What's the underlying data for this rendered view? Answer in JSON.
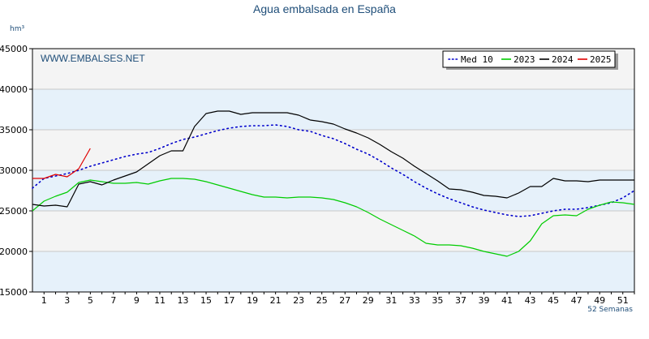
{
  "chart_data": {
    "type": "line",
    "title": "Agua embalsada en España",
    "ylabel": "hm³",
    "xlabel": "52 Semanas",
    "watermark": "WWW.EMBALSES.NET",
    "ylim": [
      15000,
      45000
    ],
    "xlim": [
      0,
      52
    ],
    "y_ticks": [
      "15000",
      "20000",
      "25000",
      "30000",
      "35000",
      "40000",
      "45000"
    ],
    "y_tick_values": [
      15000,
      20000,
      25000,
      30000,
      35000,
      40000,
      45000
    ],
    "x_ticks": [
      "1",
      "3",
      "5",
      "7",
      "9",
      "11",
      "13",
      "15",
      "17",
      "19",
      "21",
      "23",
      "25",
      "27",
      "29",
      "31",
      "33",
      "35",
      "37",
      "39",
      "41",
      "43",
      "45",
      "47",
      "49",
      "51"
    ],
    "x_tick_values": [
      1,
      3,
      5,
      7,
      9,
      11,
      13,
      15,
      17,
      19,
      21,
      23,
      25,
      27,
      29,
      31,
      33,
      35,
      37,
      39,
      41,
      43,
      45,
      47,
      49,
      51
    ],
    "grid": true,
    "band_colors": [
      "#e6f1fa",
      "#f4f4f4"
    ],
    "legend_position": "top-right",
    "series": [
      {
        "name": "Med 10",
        "color": "#0000cc",
        "style": "dotted",
        "x": [
          0,
          1,
          2,
          3,
          4,
          5,
          6,
          7,
          8,
          9,
          10,
          11,
          12,
          13,
          14,
          15,
          16,
          17,
          18,
          19,
          20,
          21,
          22,
          23,
          24,
          25,
          26,
          27,
          28,
          29,
          30,
          31,
          32,
          33,
          34,
          35,
          36,
          37,
          38,
          39,
          40,
          41,
          42,
          43,
          44,
          45,
          46,
          47,
          48,
          49,
          50,
          51,
          52
        ],
        "values": [
          27800,
          29000,
          29300,
          29600,
          30000,
          30500,
          30900,
          31300,
          31700,
          32000,
          32200,
          32700,
          33300,
          33800,
          34100,
          34500,
          34900,
          35200,
          35400,
          35500,
          35500,
          35600,
          35400,
          35000,
          34800,
          34300,
          33900,
          33300,
          32600,
          32000,
          31200,
          30300,
          29500,
          28600,
          27800,
          27100,
          26500,
          26000,
          25500,
          25100,
          24800,
          24500,
          24300,
          24400,
          24700,
          25000,
          25200,
          25200,
          25400,
          25700,
          26000,
          26600,
          27500
        ]
      },
      {
        "name": "2023",
        "color": "#00cc00",
        "style": "solid",
        "x": [
          0,
          1,
          2,
          3,
          4,
          5,
          6,
          7,
          8,
          9,
          10,
          11,
          12,
          13,
          14,
          15,
          16,
          17,
          18,
          19,
          20,
          21,
          22,
          23,
          24,
          25,
          26,
          27,
          28,
          29,
          30,
          31,
          32,
          33,
          34,
          35,
          36,
          37,
          38,
          39,
          40,
          41,
          42,
          43,
          44,
          45,
          46,
          47,
          48,
          49,
          50,
          51,
          52
        ],
        "values": [
          25000,
          26200,
          26800,
          27300,
          28500,
          28800,
          28600,
          28400,
          28400,
          28500,
          28300,
          28700,
          29000,
          29000,
          28900,
          28600,
          28200,
          27800,
          27400,
          27000,
          26700,
          26700,
          26600,
          26700,
          26700,
          26600,
          26400,
          26000,
          25500,
          24800,
          24000,
          23300,
          22600,
          21900,
          21000,
          20800,
          20800,
          20700,
          20400,
          20000,
          19700,
          19400,
          20000,
          21300,
          23400,
          24400,
          24500,
          24400,
          25200,
          25700,
          26100,
          26000,
          25800
        ]
      },
      {
        "name": "2024",
        "color": "#000000",
        "style": "solid",
        "x": [
          0,
          1,
          2,
          3,
          4,
          5,
          6,
          7,
          8,
          9,
          10,
          11,
          12,
          13,
          14,
          15,
          16,
          17,
          18,
          19,
          20,
          21,
          22,
          23,
          24,
          25,
          26,
          27,
          28,
          29,
          30,
          31,
          32,
          33,
          34,
          35,
          36,
          37,
          38,
          39,
          40,
          41,
          42,
          43,
          44,
          45,
          46,
          47,
          48,
          49,
          50,
          51,
          52
        ],
        "values": [
          25800,
          25600,
          25700,
          25500,
          28300,
          28600,
          28200,
          28800,
          29300,
          29800,
          30800,
          31800,
          32400,
          32400,
          35400,
          37000,
          37300,
          37300,
          36900,
          37100,
          37100,
          37100,
          37100,
          36800,
          36200,
          36000,
          35700,
          35100,
          34600,
          34000,
          33200,
          32300,
          31500,
          30500,
          29600,
          28700,
          27700,
          27600,
          27300,
          26900,
          26800,
          26600,
          27200,
          28000,
          28000,
          29000,
          28700,
          28700,
          28600,
          28800,
          28800,
          28800,
          28800
        ]
      },
      {
        "name": "2025",
        "color": "#e00000",
        "style": "solid",
        "x": [
          0,
          1,
          2,
          3,
          4,
          5
        ],
        "values": [
          29000,
          29000,
          29500,
          29200,
          30200,
          32700
        ]
      }
    ]
  }
}
